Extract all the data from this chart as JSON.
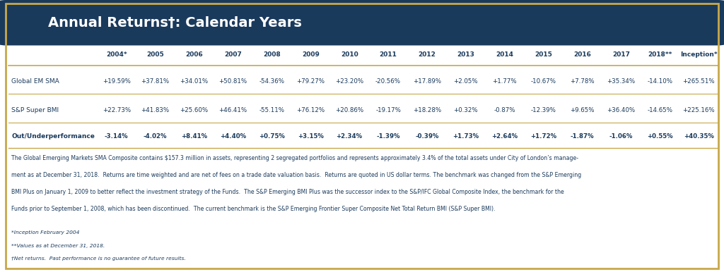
{
  "title": "Annual Returns†: Calendar Years",
  "header_bg": "#1a3a5c",
  "header_text_color": "#ffffff",
  "arrow_color": "#e8801a",
  "columns": [
    "",
    "2004*",
    "2005",
    "2006",
    "2007",
    "2008",
    "2009",
    "2010",
    "2011",
    "2012",
    "2013",
    "2014",
    "2015",
    "2016",
    "2017",
    "2018**",
    "Inception*"
  ],
  "row1_label": "Global EM SMA",
  "row1_values": [
    "+19.59%",
    "+37.81%",
    "+34.01%",
    "+50.81%",
    "-54.36%",
    "+79.27%",
    "+23.20%",
    "-20.56%",
    "+17.89%",
    "+2.05%",
    "+1.77%",
    "-10.67%",
    "+7.78%",
    "+35.34%",
    "-14.10%",
    "+265.51%"
  ],
  "row2_label": "S&P Super BMI",
  "row2_values": [
    "+22.73%",
    "+41.83%",
    "+25.60%",
    "+46.41%",
    "-55.11%",
    "+76.12%",
    "+20.86%",
    "-19.17%",
    "+18.28%",
    "+0.32%",
    "-0.87%",
    "-12.39%",
    "+9.65%",
    "+36.40%",
    "-14.65%",
    "+225.16%"
  ],
  "row3_label": "Out/Underperformance",
  "row3_values": [
    "-3.14%",
    "-4.02%",
    "+8.41%",
    "+4.40%",
    "+0.75%",
    "+3.15%",
    "+2.34%",
    "-1.39%",
    "-0.39%",
    "+1.73%",
    "+2.64%",
    "+1.72%",
    "-1.87%",
    "-1.06%",
    "+0.55%",
    "+40.35%"
  ],
  "text_color": "#1a3a5c",
  "separator_color": "#c8a84b",
  "bg_color": "#ffffff",
  "body_text": [
    "The Global Emerging Markets SMA Composite contains $157.3 million in assets, representing 2 segregated portfolios and represents approximately 3.4% of the total assets under City of London’s manage-",
    "ment as at December 31, 2018.  Returns are time weighted and are net of fees on a trade date valuation basis.  Returns are quoted in US dollar terms. The benchmark was changed from the S&P Emerging",
    "BMI Plus on January 1, 2009 to better reflect the investment strategy of the Funds.  The S&P Emerging BMI Plus was the successor index to the S&P/IFC Global Composite Index, the benchmark for the",
    "Funds prior to September 1, 2008, which has been discontinued.  The current benchmark is the S&P Emerging Frontier Super Composite Net Total Return BMI (S&P Super BMI)."
  ],
  "footnote_lines": [
    "*Inception February 2004",
    "**Values as at December 31, 2018.",
    "†Net returns.  Past performance is no guarantee of future results."
  ],
  "outer_border_color": "#c8a84b"
}
